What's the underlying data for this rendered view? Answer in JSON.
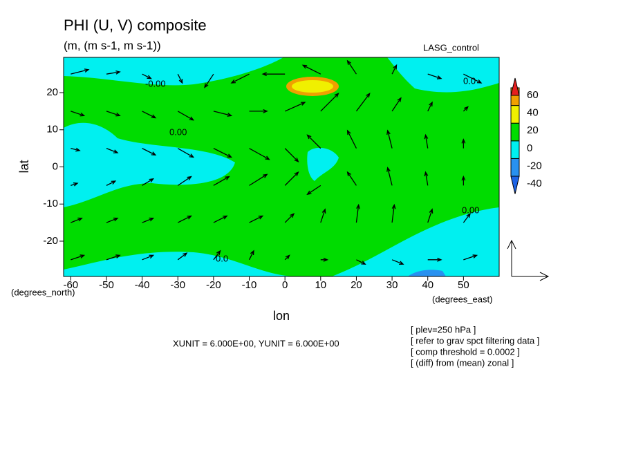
{
  "chart_data": {
    "type": "contour_vector",
    "title": "PHI (U, V) composite",
    "subtitle": "(m, (m s-1, m s-1))",
    "run_label": "LASG_control",
    "xlabel": "lon",
    "ylabel": "lat",
    "xunits_label": "(degrees_east)",
    "yunits_label": "(degrees_north)",
    "xlim": [
      -62,
      60
    ],
    "ylim": [
      -29.5,
      29.5
    ],
    "xticks": [
      -60,
      -50,
      -40,
      -30,
      -20,
      -10,
      0,
      10,
      20,
      30,
      40,
      50
    ],
    "yticks": [
      -20,
      -10,
      0,
      10,
      20
    ],
    "levels": [
      -40,
      -20,
      0,
      20,
      40,
      60
    ],
    "level_colors": [
      "#1e64e6",
      "#2891f0",
      "#00f0f0",
      "#00dc00",
      "#f0f000",
      "#f0a000",
      "#e61e1e"
    ],
    "contour_labels": [
      "-0.00",
      "0.00",
      "0.0",
      "0.00",
      "0.0"
    ],
    "vector_units": "XUNIT = 6.000E+00, YUNIT = 6.000E+00",
    "notes": [
      "[ plev=250 hPa ]",
      "[ refer to grav spct filtering data ]",
      "[ comp threshold = 0.0002 ]",
      "[ (diff) from (mean) zonal ]"
    ],
    "vector_lons": [
      -60,
      -50,
      -40,
      -30,
      -20,
      -10,
      0,
      10,
      20,
      30,
      40,
      50
    ],
    "vector_lats": [
      25,
      15,
      5,
      -5,
      -15,
      -25
    ],
    "u": [
      [
        8,
        6,
        4,
        2,
        -4,
        -8,
        -10,
        -8,
        -4,
        2,
        6,
        8
      ],
      [
        6,
        6,
        6,
        7,
        8,
        8,
        9,
        8,
        6,
        4,
        2,
        2
      ],
      [
        4,
        5,
        6,
        7,
        8,
        9,
        6,
        -6,
        -4,
        -2,
        -1,
        0
      ],
      [
        3,
        4,
        5,
        6,
        7,
        8,
        6,
        -6,
        -4,
        -2,
        -1,
        0
      ],
      [
        5,
        5,
        5,
        6,
        6,
        6,
        4,
        2,
        1,
        1,
        2,
        3
      ],
      [
        6,
        6,
        5,
        4,
        3,
        2,
        2,
        3,
        4,
        5,
        6,
        6
      ]
    ],
    "v": [
      [
        2,
        1,
        -2,
        -4,
        -6,
        -4,
        0,
        4,
        6,
        4,
        -2,
        -4
      ],
      [
        -2,
        -2,
        -3,
        -4,
        -2,
        0,
        4,
        8,
        8,
        6,
        4,
        2
      ],
      [
        -1,
        -2,
        -3,
        -4,
        -4,
        -5,
        -6,
        6,
        8,
        8,
        6,
        4
      ],
      [
        1,
        2,
        3,
        4,
        4,
        5,
        6,
        -4,
        6,
        8,
        6,
        4
      ],
      [
        2,
        2,
        2,
        3,
        3,
        3,
        4,
        6,
        8,
        8,
        6,
        4
      ],
      [
        2,
        2,
        2,
        3,
        4,
        4,
        2,
        0,
        -2,
        -2,
        0,
        2
      ]
    ]
  }
}
